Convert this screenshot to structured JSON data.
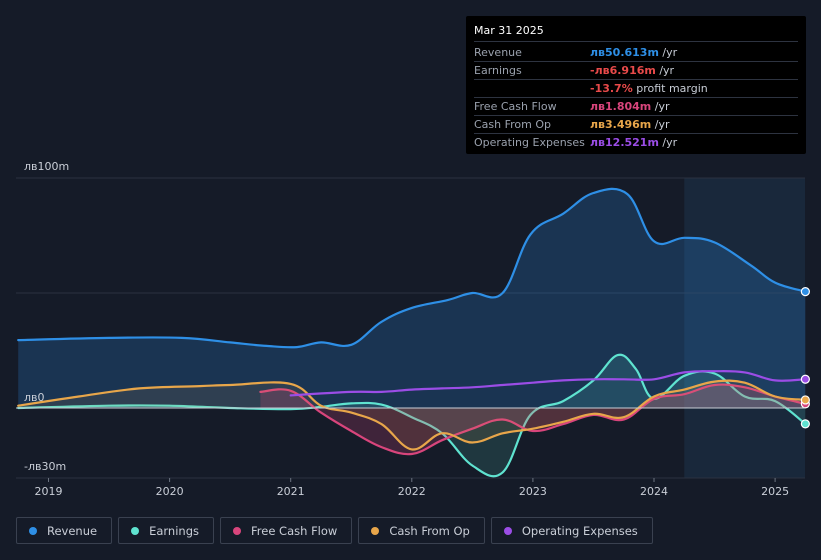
{
  "tooltip": {
    "date": "Mar 31 2025",
    "rows": [
      {
        "label": "Revenue",
        "value": "лв50.613m",
        "unit": "/yr",
        "color": "#2e8fe6"
      },
      {
        "label": "Earnings",
        "value": "-лв6.916m",
        "unit": "/yr",
        "color": "#e84a4a"
      },
      {
        "label": "",
        "value": "-13.7%",
        "unit": "profit margin",
        "color": "#e84a4a"
      },
      {
        "label": "Free Cash Flow",
        "value": "лв1.804m",
        "unit": "/yr",
        "color": "#d8457c"
      },
      {
        "label": "Cash From Op",
        "value": "лв3.496m",
        "unit": "/yr",
        "color": "#e8a64a"
      },
      {
        "label": "Operating Expenses",
        "value": "лв12.521m",
        "unit": "/yr",
        "color": "#9b4de6"
      }
    ]
  },
  "legend": [
    {
      "label": "Revenue",
      "color": "#2e8fe6"
    },
    {
      "label": "Earnings",
      "color": "#5fe3d0"
    },
    {
      "label": "Free Cash Flow",
      "color": "#d8457c"
    },
    {
      "label": "Cash From Op",
      "color": "#e8a64a"
    },
    {
      "label": "Operating Expenses",
      "color": "#9b4de6"
    }
  ],
  "chart_data": {
    "type": "area",
    "title": "",
    "y_tick_labels": [
      "лв100m",
      "лв0",
      "-лв30m"
    ],
    "ylim": [
      -30,
      100
    ],
    "xlim": [
      2018.75,
      2025.25
    ],
    "x_ticks": [
      2019,
      2020,
      2021,
      2022,
      2023,
      2024,
      2025
    ],
    "x_tick_labels": [
      "2019",
      "2020",
      "2021",
      "2022",
      "2023",
      "2024",
      "2025"
    ],
    "highlight_from": 2024.25,
    "series": [
      {
        "name": "Revenue",
        "color": "#2e8fe6",
        "fill": true,
        "points": [
          [
            2018.75,
            29.5
          ],
          [
            2019.5,
            30.5
          ],
          [
            2020.1,
            30.5
          ],
          [
            2020.5,
            28.5
          ],
          [
            2020.8,
            27
          ],
          [
            2021.05,
            26.5
          ],
          [
            2021.25,
            28.5
          ],
          [
            2021.5,
            27.5
          ],
          [
            2021.75,
            37.5
          ],
          [
            2022.0,
            43.5
          ],
          [
            2022.3,
            47
          ],
          [
            2022.5,
            50
          ],
          [
            2022.75,
            50
          ],
          [
            2022.98,
            75.5
          ],
          [
            2023.25,
            84.5
          ],
          [
            2023.5,
            93.5
          ],
          [
            2023.78,
            93
          ],
          [
            2024.0,
            72.5
          ],
          [
            2024.25,
            74
          ],
          [
            2024.5,
            72
          ],
          [
            2024.8,
            62
          ],
          [
            2025.0,
            54.5
          ],
          [
            2025.25,
            50.6
          ]
        ]
      },
      {
        "name": "Earnings",
        "color": "#5fe3d0",
        "fill": true,
        "points": [
          [
            2018.75,
            0
          ],
          [
            2019.5,
            1
          ],
          [
            2020.0,
            1
          ],
          [
            2020.5,
            0
          ],
          [
            2021.0,
            -0.5
          ],
          [
            2021.25,
            0.5
          ],
          [
            2021.5,
            2
          ],
          [
            2021.75,
            1.5
          ],
          [
            2022.0,
            -4
          ],
          [
            2022.25,
            -11
          ],
          [
            2022.5,
            -25
          ],
          [
            2022.75,
            -28
          ],
          [
            2022.98,
            -3
          ],
          [
            2023.25,
            3
          ],
          [
            2023.5,
            12
          ],
          [
            2023.7,
            23
          ],
          [
            2023.85,
            17
          ],
          [
            2024.0,
            4
          ],
          [
            2024.25,
            14
          ],
          [
            2024.5,
            15
          ],
          [
            2024.75,
            5
          ],
          [
            2025.0,
            3
          ],
          [
            2025.25,
            -6.9
          ]
        ]
      },
      {
        "name": "Free Cash Flow",
        "color": "#d8457c",
        "fill": true,
        "points": [
          [
            2020.75,
            7
          ],
          [
            2021.0,
            7.5
          ],
          [
            2021.25,
            -2
          ],
          [
            2021.5,
            -10
          ],
          [
            2021.75,
            -17
          ],
          [
            2022.0,
            -20
          ],
          [
            2022.25,
            -14
          ],
          [
            2022.5,
            -9
          ],
          [
            2022.75,
            -5
          ],
          [
            2023.0,
            -10
          ],
          [
            2023.25,
            -7
          ],
          [
            2023.5,
            -3
          ],
          [
            2023.75,
            -5
          ],
          [
            2024.0,
            4
          ],
          [
            2024.25,
            6
          ],
          [
            2024.5,
            10
          ],
          [
            2024.75,
            9
          ],
          [
            2025.0,
            5
          ],
          [
            2025.25,
            1.8
          ]
        ]
      },
      {
        "name": "Cash From Op",
        "color": "#e8a64a",
        "fill": true,
        "points": [
          [
            2018.75,
            1
          ],
          [
            2019.25,
            5
          ],
          [
            2019.75,
            8.5
          ],
          [
            2020.25,
            9.5
          ],
          [
            2020.5,
            10
          ],
          [
            2021.0,
            10.5
          ],
          [
            2021.25,
            1
          ],
          [
            2021.5,
            -2
          ],
          [
            2021.75,
            -7
          ],
          [
            2022.0,
            -18
          ],
          [
            2022.25,
            -11
          ],
          [
            2022.5,
            -15
          ],
          [
            2022.75,
            -11
          ],
          [
            2023.0,
            -9
          ],
          [
            2023.25,
            -6
          ],
          [
            2023.5,
            -2.5
          ],
          [
            2023.75,
            -4
          ],
          [
            2024.0,
            5
          ],
          [
            2024.25,
            8
          ],
          [
            2024.5,
            11.5
          ],
          [
            2024.75,
            11
          ],
          [
            2025.0,
            5
          ],
          [
            2025.25,
            3.5
          ]
        ]
      },
      {
        "name": "Operating Expenses",
        "color": "#9b4de6",
        "fill": false,
        "points": [
          [
            2021.0,
            5.5
          ],
          [
            2021.5,
            7
          ],
          [
            2021.75,
            7
          ],
          [
            2022.0,
            8
          ],
          [
            2022.25,
            8.5
          ],
          [
            2022.5,
            9
          ],
          [
            2022.75,
            10
          ],
          [
            2023.0,
            11
          ],
          [
            2023.25,
            12
          ],
          [
            2023.5,
            12.5
          ],
          [
            2023.75,
            12.5
          ],
          [
            2024.0,
            12.5
          ],
          [
            2024.25,
            15.5
          ],
          [
            2024.5,
            16
          ],
          [
            2024.75,
            15.5
          ],
          [
            2025.0,
            12
          ],
          [
            2025.25,
            12.5
          ]
        ]
      }
    ]
  }
}
